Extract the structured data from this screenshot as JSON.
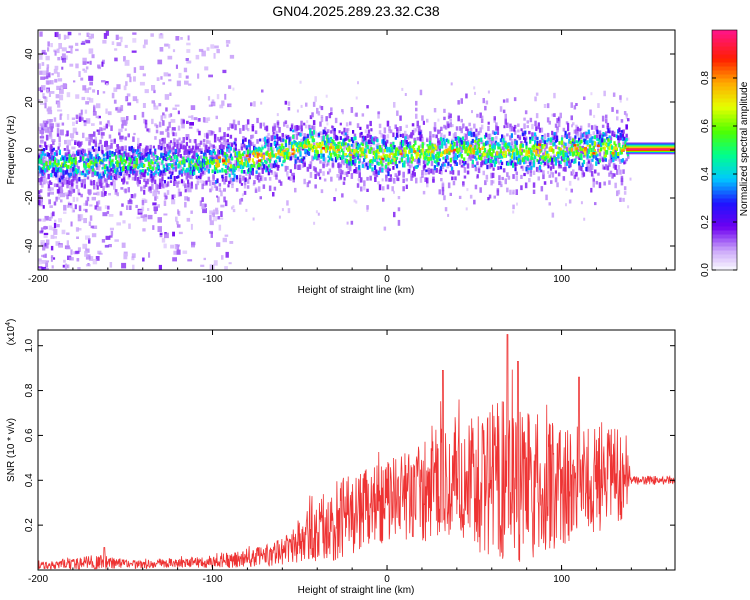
{
  "chart_data": [
    {
      "type": "heatmap",
      "title": "GN04.2025.289.23.32.C38",
      "xlabel": "Height of straight line (km)",
      "ylabel": "Frequency (Hz)",
      "xlim": [
        -200,
        165
      ],
      "ylim": [
        -50,
        50
      ],
      "x_ticks": [
        -200,
        -100,
        0,
        100
      ],
      "y_ticks": [
        -40,
        -20,
        0,
        20,
        40
      ],
      "x_tick_labels": [
        "-200",
        "-100",
        "0",
        "100"
      ],
      "y_tick_labels": [
        "-40",
        "-20",
        "0",
        "20",
        "40"
      ],
      "ridge_x": [
        -200,
        -150,
        -100,
        -80,
        -60,
        -45,
        -30,
        -20,
        0,
        20,
        50,
        80,
        100,
        120,
        140,
        165
      ],
      "ridge_y": [
        -5,
        -5,
        -5,
        -3,
        0,
        3,
        1,
        0,
        -2,
        0,
        1,
        0,
        1,
        1,
        1,
        1
      ],
      "colorbar": {
        "label": "Normalized spectral amplitude",
        "range": [
          0,
          1
        ],
        "ticks": [
          0.0,
          0.2,
          0.4,
          0.6,
          0.8
        ],
        "tick_labels": [
          "0.0",
          "0.2",
          "0.4",
          "0.6",
          "0.8"
        ]
      }
    },
    {
      "type": "line",
      "xlabel": "Height of straight line (km)",
      "ylabel": "SNR (10 * v/v)",
      "y_scale_note": "(x10",
      "y_scale_exp": "4",
      "y_scale_close": ")",
      "xlim": [
        -200,
        165
      ],
      "ylim": [
        0,
        1.07
      ],
      "x_ticks": [
        -200,
        -100,
        0,
        100
      ],
      "y_ticks": [
        0.2,
        0.4,
        0.6,
        0.8,
        1.0
      ],
      "x_tick_labels": [
        "-200",
        "-100",
        "0",
        "100"
      ],
      "y_tick_labels": [
        "0.2",
        "0.4",
        "0.6",
        "0.8",
        "1.0"
      ],
      "series": [
        {
          "name": "SNR",
          "color": "#ee3333",
          "envelope_x": [
            -200,
            -165,
            -150,
            -120,
            -100,
            -80,
            -60,
            -50,
            -40,
            -30,
            -20,
            -10,
            0,
            10,
            20,
            30,
            40,
            50,
            60,
            70,
            80,
            90,
            100,
            110,
            120,
            130,
            137,
            140,
            150,
            165
          ],
          "envelope_mid": [
            0.02,
            0.03,
            0.025,
            0.03,
            0.04,
            0.05,
            0.08,
            0.12,
            0.18,
            0.22,
            0.25,
            0.28,
            0.3,
            0.32,
            0.35,
            0.38,
            0.4,
            0.4,
            0.4,
            0.4,
            0.38,
            0.38,
            0.38,
            0.4,
            0.4,
            0.42,
            0.42,
            0.4,
            0.4,
            0.4
          ],
          "envelope_amp": [
            0.015,
            0.04,
            0.02,
            0.02,
            0.03,
            0.04,
            0.06,
            0.1,
            0.14,
            0.18,
            0.18,
            0.18,
            0.2,
            0.2,
            0.22,
            0.26,
            0.3,
            0.32,
            0.35,
            0.38,
            0.34,
            0.3,
            0.28,
            0.26,
            0.24,
            0.22,
            0.2,
            0.02,
            0.02,
            0.02
          ],
          "peaks": [
            {
              "x": -162,
              "y": 0.1
            },
            {
              "x": 32,
              "y": 0.89
            },
            {
              "x": 69,
              "y": 1.05
            },
            {
              "x": 75,
              "y": 0.93
            },
            {
              "x": 110,
              "y": 0.86
            }
          ]
        }
      ]
    }
  ]
}
